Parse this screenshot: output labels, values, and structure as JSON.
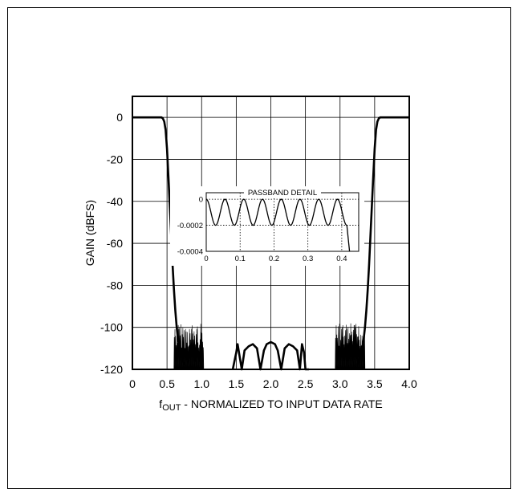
{
  "chart_data": {
    "type": "line",
    "title": "",
    "xlabel": {
      "main": "f",
      "sub": "OUT",
      "rest": " - NORMALIZED TO INPUT DATA RATE"
    },
    "ylabel": "GAIN (dBFS)",
    "xlim": [
      0,
      4.0
    ],
    "ylim": [
      -120,
      10
    ],
    "grid": true,
    "x_ticks": [
      "0",
      "0.5",
      "1.0",
      "1.5",
      "2.0",
      "2.5",
      "3.0",
      "3.5",
      "4.0"
    ],
    "y_ticks": [
      "0",
      "-20",
      "-40",
      "-60",
      "-80",
      "-100",
      "-120"
    ],
    "series": [
      {
        "x": [
          0,
          0.3,
          0.42,
          0.44,
          0.46,
          0.48,
          0.5,
          0.52,
          0.54,
          0.56,
          0.58,
          0.6,
          0.62,
          0.64,
          0.66,
          0.68,
          0.7,
          0.75
        ],
        "y": [
          0,
          0,
          0,
          -0.5,
          -2,
          -6,
          -15,
          -28,
          -42,
          -56,
          -70,
          -82,
          -92,
          -100,
          -106,
          -110,
          -113,
          -118
        ]
      },
      {
        "x": [
          1.45,
          1.5,
          1.52,
          1.55,
          1.58,
          1.62,
          1.68,
          1.74,
          1.8,
          1.85,
          1.9,
          1.94,
          2.0,
          2.06,
          2.1,
          2.15,
          2.2,
          2.26,
          2.32,
          2.38,
          2.42,
          2.45,
          2.48,
          2.5,
          2.55
        ],
        "y": [
          -120,
          -112,
          -108,
          -114,
          -120,
          -111,
          -109,
          -108,
          -110,
          -120,
          -111,
          -108,
          -107,
          -108,
          -111,
          -120,
          -110,
          -108,
          -109,
          -111,
          -120,
          -108,
          -112,
          -120,
          -120
        ]
      },
      {
        "x": [
          3.25,
          3.3,
          3.32,
          3.34,
          3.36,
          3.38,
          3.4,
          3.42,
          3.44,
          3.46,
          3.48,
          3.5,
          3.52,
          3.54,
          3.56,
          3.58,
          3.62,
          3.7,
          4.0
        ],
        "y": [
          -118,
          -113,
          -110,
          -106,
          -100,
          -92,
          -82,
          -70,
          -56,
          -42,
          -28,
          -15,
          -6,
          -2,
          -0.5,
          0,
          0,
          0,
          0
        ]
      }
    ],
    "inset": {
      "title": "PASSBAND DETAIL",
      "xlim": [
        0,
        0.45
      ],
      "ylim": [
        -0.0004,
        5e-05
      ],
      "x_ticks": [
        "0",
        "0.1",
        "0.2",
        "0.3",
        "0.4"
      ],
      "y_ticks": [
        "0",
        "-0.0002",
        "-0.0004"
      ],
      "ripple_center": -0.0001,
      "ripple_amplitude": 0.0001,
      "ripple_cycles": 7.5,
      "cutoff_x": 0.415
    }
  }
}
